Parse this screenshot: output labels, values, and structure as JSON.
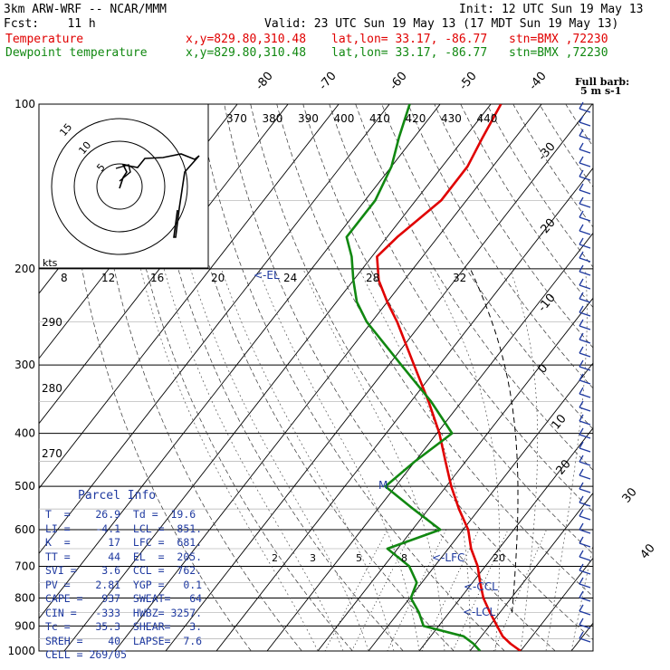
{
  "header": {
    "title": "3km ARW-WRF -- NCAR/MMM",
    "init": "Init: 12 UTC Sun 19 May 13",
    "fcst": "Fcst:    11 h",
    "valid": "Valid: 23 UTC Sun 19 May 13 (17 MDT Sun 19 May 13)",
    "temp_line": "Temperature",
    "dew_line": "Dewpoint temperature",
    "coords": "x,y=829.80,310.48",
    "latlon": "lat,lon= 33.17, -86.77",
    "stn": "stn=BMX ,72230",
    "temp_color": "#e00000",
    "dew_color": "#118811"
  },
  "chart_data": {
    "type": "line",
    "subtype": "skew-T log-P sounding",
    "pressure_levels": [
      100,
      200,
      300,
      400,
      500,
      600,
      700,
      800,
      900,
      1000
    ],
    "temp_ticks": [
      -80,
      -70,
      -60,
      -50,
      -40,
      -30,
      -20,
      -10,
      0,
      10,
      20,
      30,
      40
    ],
    "theta_labels": [
      "370",
      "380",
      "390",
      "400",
      "410",
      "420",
      "430",
      "440"
    ],
    "hodo_speed_labels": [
      "8",
      "12",
      "16",
      "20",
      "24",
      "28",
      "32"
    ],
    "hodo_ring_labels": [
      "5",
      "10",
      "15"
    ],
    "hodo_unit": "kts",
    "barb_title": "Full barb:",
    "barb_unit": "5 m s-1",
    "theta_e_labels": [
      "290",
      "280",
      "270"
    ],
    "mixing_ratio_labels": [
      "2",
      "3",
      "5",
      "8",
      "20"
    ],
    "annotations": [
      "<-EL",
      "<-LFC",
      "<-CCL",
      "<-LCL",
      "M"
    ],
    "series": [
      {
        "name": "Temperature",
        "color": "#e00000",
        "p": [
          1000,
          970,
          940,
          900,
          850,
          800,
          750,
          700,
          650,
          600,
          550,
          500,
          450,
          400,
          350,
          300,
          250,
          230,
          210,
          190,
          175,
          150,
          130,
          115,
          100
        ],
        "t": [
          30,
          26.9,
          24.2,
          21.5,
          18,
          14.5,
          11.5,
          8.5,
          4.5,
          1,
          -4,
          -9,
          -14,
          -19.5,
          -26.5,
          -35,
          -45,
          -50,
          -55,
          -59,
          -58,
          -55,
          -55,
          -56.5,
          -58
        ]
      },
      {
        "name": "Dewpoint temperature",
        "color": "#118811",
        "p": [
          1000,
          970,
          940,
          900,
          850,
          800,
          750,
          700,
          650,
          600,
          550,
          500,
          450,
          400,
          350,
          300,
          250,
          230,
          210,
          190,
          175,
          150,
          130,
          115,
          100
        ],
        "td": [
          22,
          19.6,
          16.5,
          7,
          4,
          0.2,
          -1,
          -5,
          -12,
          -4.5,
          -13,
          -22,
          -20,
          -17,
          -26,
          -37.5,
          -51,
          -56,
          -60,
          -64,
          -68,
          -68,
          -70,
          -73,
          -76
        ]
      }
    ]
  },
  "parcel": {
    "title": "Parcel Info",
    "rows": [
      "T  =    26.9  Td =  19.6",
      "LI =    -4.1  LCL =  851.",
      "K  =      17  LFC =  681.",
      "TT =      44  EL  =  205.",
      "SVI =    3.6  CCL =  762.",
      "PV =    2.81  YGP =   0.1",
      "CAPE =   937  SWEAT=   64",
      "CIN =   -333  HWBZ= 3257.",
      "Tc =    35.3  SHEAR=   3.",
      "SREH =    40  LAPSE=  7.6",
      "CELL = 269/05"
    ]
  }
}
